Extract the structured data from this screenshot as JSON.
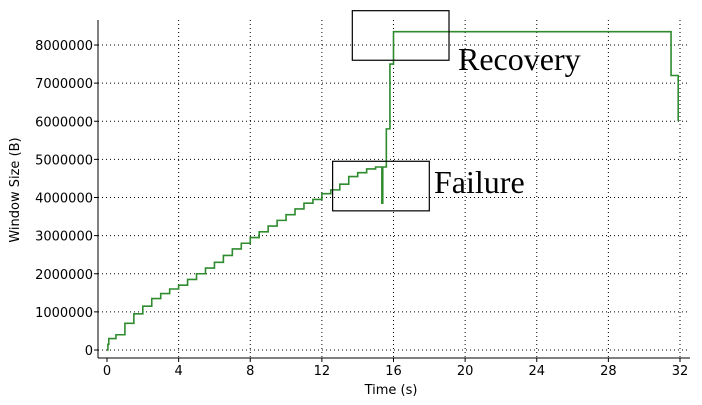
{
  "chart_data": {
    "type": "line",
    "xlabel": "Time (s)",
    "ylabel": "Window Size (B)",
    "xlim": [
      0,
      32
    ],
    "ylim": [
      0,
      8000000
    ],
    "xticks": [
      0,
      4,
      8,
      12,
      16,
      20,
      24,
      28,
      32
    ],
    "yticks": [
      0,
      1000000,
      2000000,
      3000000,
      4000000,
      5000000,
      6000000,
      7000000,
      8000000
    ],
    "grid": true,
    "series": [
      {
        "color": "#2e8b2e",
        "x": [
          0,
          0.05,
          0.1,
          0.5,
          1.0,
          1.5,
          2.0,
          2.5,
          3.0,
          3.5,
          4.0,
          4.5,
          5.0,
          5.5,
          6.0,
          6.5,
          7.0,
          7.5,
          8.0,
          8.5,
          9.0,
          9.5,
          10.0,
          10.5,
          11.0,
          11.5,
          12.0,
          12.5,
          13.0,
          13.5,
          14.0,
          14.5,
          15.0,
          15.3,
          15.35,
          15.4,
          15.5,
          15.6,
          15.8,
          16.0,
          17.0,
          20.0,
          24.0,
          28.0,
          31.0,
          31.5,
          31.9
        ],
        "y": [
          0,
          150000,
          300000,
          400000,
          700000,
          950000,
          1150000,
          1350000,
          1480000,
          1600000,
          1700000,
          1850000,
          2000000,
          2150000,
          2300000,
          2480000,
          2650000,
          2800000,
          2950000,
          3100000,
          3250000,
          3400000,
          3550000,
          3700000,
          3850000,
          3950000,
          4100000,
          4200000,
          4350000,
          4550000,
          4650000,
          4750000,
          4800000,
          4800000,
          3850000,
          4800000,
          4800000,
          5800000,
          7500000,
          8350000,
          8350000,
          8350000,
          8350000,
          8350000,
          8350000,
          7200000,
          6000000
        ]
      }
    ],
    "annotations": [
      {
        "text": "Failure",
        "box_x": [
          12.6,
          18.0
        ],
        "box_y": [
          3650000,
          4950000
        ]
      },
      {
        "text": "Recovery",
        "box_x": [
          13.7,
          19.1
        ],
        "box_y": [
          7600000,
          8900000
        ]
      }
    ]
  }
}
